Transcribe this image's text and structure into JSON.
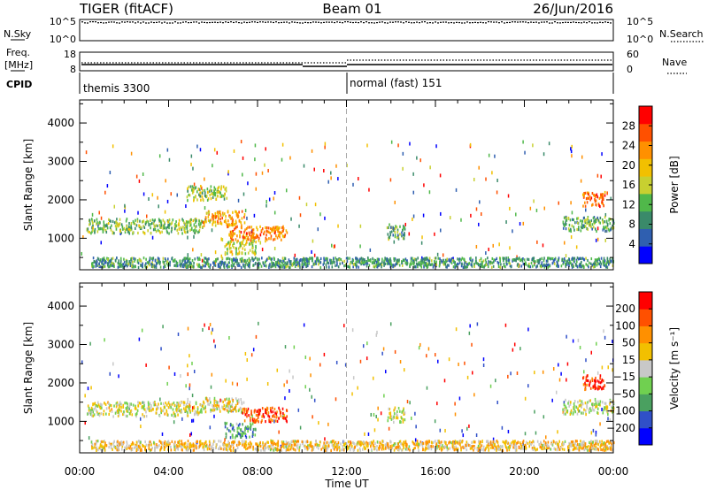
{
  "header": {
    "radar": "TIGER (fitACF)",
    "beam": "Beam 01",
    "date": "26/Jun/2016"
  },
  "top_panels": {
    "noise": {
      "left_label": "N.Sky",
      "right_label": "N.Search",
      "left_ticks": [
        "10^5",
        "10^0"
      ],
      "right_ticks": [
        "10^5",
        "10^0"
      ]
    },
    "freq": {
      "left_label_1": "Freq.",
      "left_label_2": "[MHz]",
      "right_label": "Nave",
      "left_ticks": [
        "18",
        "8"
      ],
      "right_ticks": [
        "60",
        "0"
      ],
      "freq_value": 10,
      "nave_before": 6,
      "nave_after": 20,
      "switch_time": "12:00"
    },
    "cpid": {
      "label": "CPID",
      "modes": [
        {
          "name": "themis 3300",
          "start": "00:00"
        },
        {
          "name": "normal (fast) 151",
          "start": "12:00"
        }
      ]
    }
  },
  "chart_data": [
    {
      "type": "heatmap",
      "parameter": "power",
      "xlabel": "",
      "ylabel": "Slant Range [km]",
      "x_ticks": [
        "00:00",
        "04:00",
        "08:00",
        "12:00",
        "16:00",
        "20:00",
        "00:00"
      ],
      "y_ticks": [
        1000,
        2000,
        3000,
        4000
      ],
      "xlim_hours": [
        0,
        24
      ],
      "ylim_km": [
        180,
        4600
      ],
      "colorbar": {
        "label": "Power [dB]",
        "ticks": [
          4,
          8,
          12,
          16,
          20,
          24,
          28
        ],
        "range": [
          0,
          32
        ],
        "colors": [
          "#0000ff",
          "#2f5fb0",
          "#3a8a6a",
          "#50b84a",
          "#c8d030",
          "#f2c000",
          "#ff9000",
          "#ff5000",
          "#ff0000"
        ]
      },
      "regions": [
        {
          "t_start": 0.3,
          "t_end": 5.5,
          "range_km": 1350,
          "level": 0.4
        },
        {
          "t_start": 5.5,
          "t_end": 7.4,
          "range_km": 1550,
          "level": 0.7
        },
        {
          "t_start": 6.6,
          "t_end": 9.3,
          "range_km": 1150,
          "level": 0.75
        },
        {
          "t_start": 6.5,
          "t_end": 7.9,
          "range_km": 800,
          "level": 0.5
        },
        {
          "t_start": 4.8,
          "t_end": 6.6,
          "range_km": 2200,
          "level": 0.45
        },
        {
          "t_start": 13.8,
          "t_end": 14.6,
          "range_km": 1200,
          "level": 0.35
        },
        {
          "t_start": 22.6,
          "t_end": 23.6,
          "range_km": 2050,
          "level": 0.8
        },
        {
          "t_start": 21.7,
          "t_end": 24.0,
          "range_km": 1400,
          "level": 0.35
        },
        {
          "t_start": 0.5,
          "t_end": 24.0,
          "range_km": 400,
          "level": 0.3
        }
      ]
    },
    {
      "type": "heatmap",
      "parameter": "velocity",
      "xlabel": "Time UT",
      "ylabel": "Slant Range [km]",
      "x_ticks": [
        "00:00",
        "04:00",
        "08:00",
        "12:00",
        "16:00",
        "20:00",
        "00:00"
      ],
      "y_ticks": [
        1000,
        2000,
        3000,
        4000
      ],
      "xlim_hours": [
        0,
        24
      ],
      "ylim_km": [
        180,
        4600
      ],
      "colorbar": {
        "label": "Velocity [m s⁻¹]",
        "ticks": [
          "200",
          "100",
          "50",
          "15",
          "−15",
          "−50",
          "−100",
          "−200"
        ],
        "colors": [
          "#0000ff",
          "#3050c8",
          "#4aa060",
          "#70d050",
          "#c8c8c8",
          "#f2c000",
          "#ff9000",
          "#ff5000",
          "#ff0000"
        ]
      },
      "regions": [
        {
          "t_start": 0.3,
          "t_end": 5.5,
          "range_km": 1350,
          "level": 0.5
        },
        {
          "t_start": 5.5,
          "t_end": 7.4,
          "range_km": 1450,
          "level": 0.55
        },
        {
          "t_start": 7.3,
          "t_end": 9.3,
          "range_km": 1200,
          "level": 0.85
        },
        {
          "t_start": 6.5,
          "t_end": 7.9,
          "range_km": 800,
          "level": 0.3
        },
        {
          "t_start": 13.8,
          "t_end": 14.6,
          "range_km": 1200,
          "level": 0.5
        },
        {
          "t_start": 22.6,
          "t_end": 23.6,
          "range_km": 2050,
          "level": 0.9
        },
        {
          "t_start": 21.7,
          "t_end": 24.0,
          "range_km": 1400,
          "level": 0.5
        },
        {
          "t_start": 0.5,
          "t_end": 24.0,
          "range_km": 400,
          "level": 0.6
        }
      ]
    }
  ]
}
